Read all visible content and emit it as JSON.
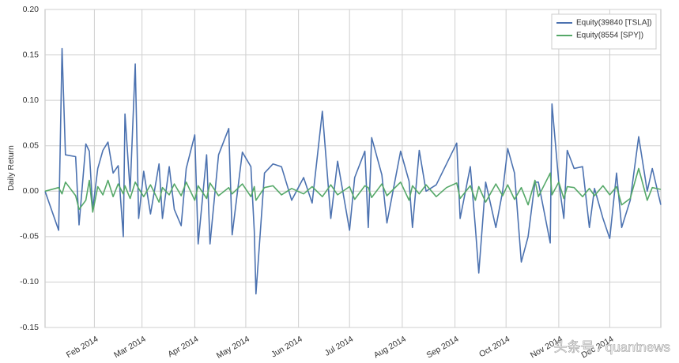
{
  "chart_data": {
    "type": "line",
    "ylabel": "Daily Return",
    "xlim": [
      2,
      364
    ],
    "xticks": [
      {
        "value": 31,
        "label": "Feb 2014"
      },
      {
        "value": 59,
        "label": "Mar 2014"
      },
      {
        "value": 90,
        "label": "Apr 2014"
      },
      {
        "value": 120,
        "label": "May 2014"
      },
      {
        "value": 151,
        "label": "Jun 2014"
      },
      {
        "value": 181,
        "label": "Jul 2014"
      },
      {
        "value": 212,
        "label": "Aug 2014"
      },
      {
        "value": 243,
        "label": "Sep 2014"
      },
      {
        "value": 273,
        "label": "Oct 2014"
      },
      {
        "value": 304,
        "label": "Nov 2014"
      },
      {
        "value": 334,
        "label": "Dec 2014"
      }
    ],
    "ylim": [
      -0.15,
      0.2
    ],
    "yticks": [
      {
        "value": -0.15,
        "label": "-0.15"
      },
      {
        "value": -0.1,
        "label": "-0.10"
      },
      {
        "value": -0.05,
        "label": "-0.05"
      },
      {
        "value": 0,
        "label": "0.00"
      },
      {
        "value": 0.05,
        "label": "0.05"
      },
      {
        "value": 0.1,
        "label": "0.10"
      },
      {
        "value": 0.15,
        "label": "0.15"
      },
      {
        "value": 0.2,
        "label": "0.20"
      }
    ],
    "grid": true,
    "legend": "upper right",
    "x": [
      2,
      10,
      12,
      14,
      20,
      22,
      26,
      28,
      30,
      33,
      36,
      39,
      42,
      45,
      48,
      49,
      52,
      55,
      57,
      60,
      64,
      69,
      71,
      75,
      78,
      82,
      85,
      90,
      92,
      97,
      99,
      104,
      110,
      112,
      118,
      123,
      125,
      126,
      131,
      136,
      141,
      147,
      154,
      159,
      165,
      170,
      174,
      181,
      184,
      190,
      192,
      194,
      200,
      203,
      211,
      216,
      218,
      222,
      226,
      232,
      238,
      244,
      246,
      252,
      255,
      257,
      261,
      267,
      271,
      274,
      278,
      282,
      286,
      290,
      292,
      299,
      300,
      304,
      307,
      309,
      313,
      318,
      322,
      325,
      330,
      334,
      338,
      341,
      346,
      351,
      356,
      359,
      364
    ],
    "series": [
      {
        "name": "Equity(39840 [TSLA])",
        "color": "#4c72b0",
        "values": [
          0.0,
          -0.043,
          0.157,
          0.04,
          0.038,
          -0.037,
          0.052,
          0.044,
          -0.02,
          0.025,
          0.045,
          0.054,
          0.02,
          0.028,
          -0.05,
          0.085,
          0.0,
          0.14,
          -0.03,
          0.022,
          -0.025,
          0.03,
          -0.03,
          0.027,
          -0.02,
          -0.038,
          0.025,
          0.062,
          -0.058,
          0.04,
          -0.058,
          0.04,
          0.069,
          -0.048,
          0.043,
          0.027,
          -0.044,
          -0.113,
          0.02,
          0.03,
          0.027,
          -0.01,
          0.015,
          -0.013,
          0.088,
          -0.03,
          0.033,
          -0.043,
          0.015,
          0.044,
          -0.04,
          0.059,
          0.018,
          -0.035,
          0.044,
          0.011,
          -0.04,
          0.045,
          0.0,
          0.007,
          0.03,
          0.053,
          -0.03,
          0.027,
          -0.04,
          -0.09,
          0.01,
          -0.04,
          0.0,
          0.047,
          0.02,
          -0.078,
          -0.05,
          0.01,
          0.01,
          -0.057,
          0.096,
          0.01,
          -0.03,
          0.045,
          0.025,
          0.027,
          -0.04,
          0.003,
          -0.03,
          -0.052,
          0.02,
          -0.04,
          -0.01,
          0.06,
          0.0,
          0.025,
          -0.015
        ]
      },
      {
        "name": "Equity(8554 [SPY])",
        "color": "#55a868",
        "values": [
          0.0,
          0.004,
          -0.003,
          0.01,
          -0.005,
          -0.02,
          -0.01,
          0.012,
          -0.023,
          0.005,
          -0.004,
          0.012,
          -0.006,
          0.008,
          -0.003,
          0.006,
          -0.008,
          0.01,
          0.003,
          -0.006,
          0.007,
          -0.012,
          0.004,
          -0.004,
          0.008,
          -0.005,
          0.01,
          -0.01,
          0.006,
          -0.008,
          0.009,
          -0.005,
          0.004,
          -0.003,
          0.008,
          -0.006,
          0.005,
          -0.01,
          0.004,
          0.006,
          -0.004,
          0.003,
          -0.003,
          0.005,
          -0.006,
          0.007,
          -0.004,
          0.005,
          -0.009,
          0.006,
          0.004,
          -0.007,
          0.008,
          -0.005,
          0.01,
          -0.01,
          0.006,
          -0.003,
          0.007,
          -0.006,
          0.004,
          0.009,
          -0.008,
          0.006,
          -0.01,
          0.005,
          -0.012,
          0.008,
          -0.005,
          0.007,
          -0.009,
          0.004,
          -0.015,
          0.012,
          -0.006,
          0.02,
          -0.004,
          0.01,
          -0.008,
          0.005,
          0.004,
          -0.006,
          0.003,
          -0.005,
          0.006,
          -0.004,
          0.005,
          -0.015,
          -0.008,
          0.025,
          -0.01,
          0.004,
          0.002
        ]
      }
    ],
    "watermark": "头条号 / quantnews"
  }
}
